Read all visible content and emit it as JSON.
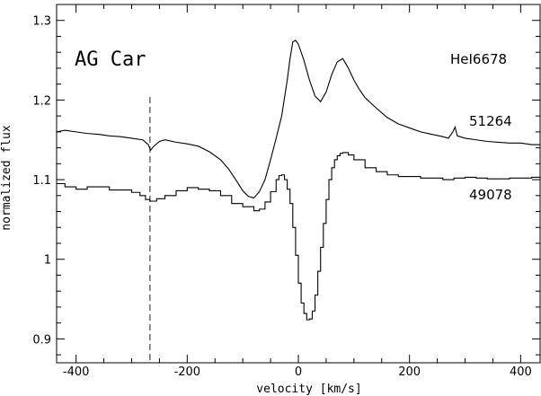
{
  "chart_data": {
    "type": "line",
    "title": "",
    "xlabel": "velocity [km/s]",
    "ylabel": "normalized flux",
    "xlim": [
      -435,
      435
    ],
    "ylim": [
      0.87,
      1.32
    ],
    "x_ticks": [
      -400,
      -200,
      0,
      200,
      400
    ],
    "x_tick_labels": [
      "-400",
      "-200",
      "0",
      "200",
      "400"
    ],
    "y_ticks": [
      0.9,
      1,
      1.1,
      1.2,
      1.3
    ],
    "y_tick_labels": [
      "0.9",
      "1",
      "1.1",
      "1.2",
      "1.3"
    ],
    "grid": false,
    "annotations": {
      "object": "AG Car",
      "line": "HeI6678",
      "epoch_upper": "51264",
      "epoch_lower": "49078"
    },
    "reference_line": {
      "x": -267,
      "style": "dashed"
    },
    "series": [
      {
        "style": "line",
        "color": "#000000",
        "x": [
          -435,
          -420,
          -400,
          -380,
          -360,
          -340,
          -320,
          -300,
          -280,
          -270,
          -266,
          -260,
          -250,
          -240,
          -220,
          -200,
          -180,
          -160,
          -140,
          -125,
          -110,
          -100,
          -90,
          -80,
          -70,
          -60,
          -50,
          -40,
          -30,
          -20,
          -15,
          -10,
          -5,
          0,
          10,
          20,
          30,
          40,
          50,
          60,
          70,
          80,
          90,
          100,
          110,
          120,
          140,
          160,
          180,
          200,
          220,
          240,
          260,
          270,
          278,
          282,
          286,
          300,
          320,
          340,
          360,
          380,
          400,
          420,
          435
        ],
        "y": [
          1.16,
          1.162,
          1.16,
          1.158,
          1.157,
          1.155,
          1.154,
          1.152,
          1.15,
          1.144,
          1.137,
          1.142,
          1.148,
          1.15,
          1.147,
          1.145,
          1.142,
          1.135,
          1.125,
          1.113,
          1.097,
          1.086,
          1.079,
          1.077,
          1.085,
          1.1,
          1.125,
          1.152,
          1.18,
          1.225,
          1.252,
          1.273,
          1.275,
          1.27,
          1.25,
          1.225,
          1.205,
          1.198,
          1.21,
          1.232,
          1.248,
          1.252,
          1.24,
          1.225,
          1.213,
          1.203,
          1.19,
          1.178,
          1.17,
          1.165,
          1.16,
          1.157,
          1.154,
          1.152,
          1.16,
          1.166,
          1.155,
          1.152,
          1.15,
          1.148,
          1.147,
          1.146,
          1.146,
          1.144,
          1.144
        ]
      },
      {
        "style": "step",
        "color": "#000000",
        "x": [
          -435,
          -420,
          -400,
          -380,
          -360,
          -340,
          -320,
          -300,
          -285,
          -275,
          -267,
          -255,
          -240,
          -220,
          -200,
          -180,
          -160,
          -140,
          -120,
          -100,
          -80,
          -70,
          -60,
          -50,
          -40,
          -35,
          -30,
          -25,
          -20,
          -15,
          -10,
          -5,
          0,
          5,
          10,
          15,
          20,
          25,
          30,
          35,
          40,
          45,
          50,
          55,
          60,
          65,
          70,
          75,
          80,
          90,
          100,
          120,
          140,
          160,
          180,
          200,
          220,
          240,
          260,
          280,
          300,
          320,
          340,
          360,
          380,
          400,
          420,
          435
        ],
        "y": [
          1.095,
          1.091,
          1.088,
          1.091,
          1.091,
          1.087,
          1.087,
          1.084,
          1.08,
          1.075,
          1.073,
          1.076,
          1.08,
          1.086,
          1.09,
          1.088,
          1.086,
          1.08,
          1.07,
          1.066,
          1.061,
          1.063,
          1.072,
          1.085,
          1.1,
          1.105,
          1.106,
          1.1,
          1.088,
          1.07,
          1.04,
          1.005,
          0.97,
          0.945,
          0.932,
          0.924,
          0.925,
          0.935,
          0.955,
          0.985,
          1.015,
          1.045,
          1.075,
          1.1,
          1.115,
          1.125,
          1.13,
          1.133,
          1.134,
          1.131,
          1.125,
          1.115,
          1.11,
          1.106,
          1.104,
          1.104,
          1.102,
          1.102,
          1.1,
          1.102,
          1.103,
          1.102,
          1.101,
          1.101,
          1.102,
          1.102,
          1.103,
          1.102
        ]
      }
    ]
  }
}
